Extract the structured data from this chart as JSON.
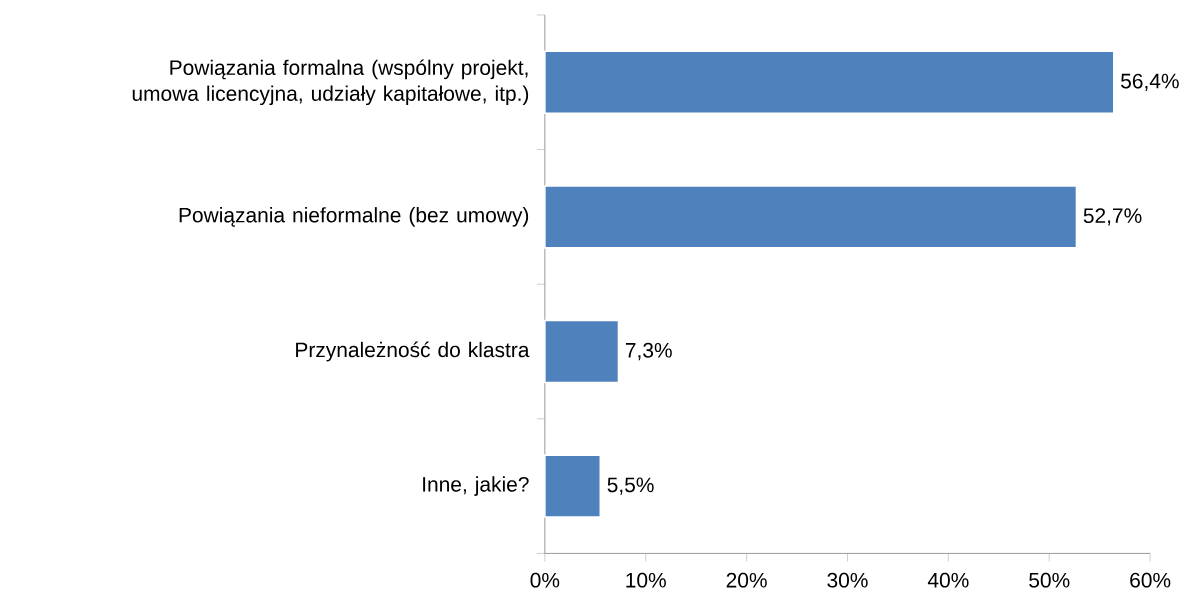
{
  "chart_data": {
    "type": "bar",
    "orientation": "horizontal",
    "categories": [
      "Powiązania formalna (wspólny projekt, umowa licencyjna, udziały kapitałowe, itp.)",
      "Powiązania nieformalne (bez umowy)",
      "Przynależność do klastra",
      "Inne, jakie?"
    ],
    "values": [
      56.4,
      52.7,
      7.3,
      5.5
    ],
    "value_labels": [
      "56,4%",
      "52,7%",
      "7,3%",
      "5,5%"
    ],
    "color": "#4f81bd",
    "xlim": [
      0,
      60
    ],
    "xticks": [
      {
        "value": 0,
        "label": "0%"
      },
      {
        "value": 10,
        "label": "10%"
      },
      {
        "value": 20,
        "label": "20%"
      },
      {
        "value": 30,
        "label": "30%"
      },
      {
        "value": 40,
        "label": "40%"
      },
      {
        "value": 50,
        "label": "50%"
      },
      {
        "value": 60,
        "label": "60%"
      }
    ],
    "grid": false
  }
}
